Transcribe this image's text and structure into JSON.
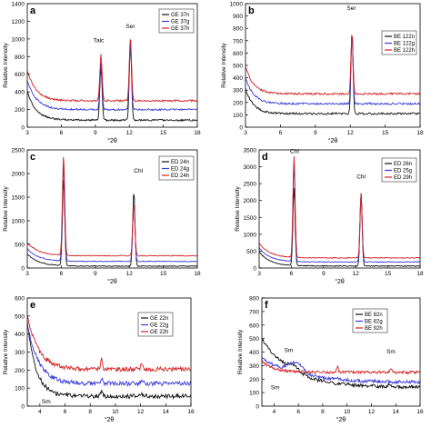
{
  "colors": {
    "n": "#111111",
    "g": "#3b3bd9",
    "h": "#d42020",
    "axis": "#000000",
    "legend_border": "#333333"
  },
  "chart_data": [
    {
      "type": "line",
      "panel": "a",
      "ylabel": "Relative Intensity",
      "xlabel": "°2θ",
      "xlim": [
        3,
        18
      ],
      "ylim": [
        0,
        1400
      ],
      "xticks": [
        3,
        6,
        9,
        12,
        15,
        18
      ],
      "yticks": [
        0,
        200,
        400,
        600,
        800,
        1000,
        1200,
        1400
      ],
      "series": [
        {
          "name": "GE 37n",
          "color_key": "n",
          "base": 80,
          "amp": 320,
          "tau": 0.8,
          "noise": 10,
          "peaks": [
            [
              9.5,
              600,
              0.1
            ],
            [
              12.1,
              860,
              0.1
            ]
          ]
        },
        {
          "name": "GE 37g",
          "color_key": "g",
          "base": 200,
          "amp": 330,
          "tau": 0.8,
          "noise": 10,
          "peaks": [
            [
              9.5,
              530,
              0.1
            ],
            [
              12.1,
              760,
              0.1
            ]
          ]
        },
        {
          "name": "GE 37h",
          "color_key": "h",
          "base": 300,
          "amp": 340,
          "tau": 0.8,
          "noise": 10,
          "peaks": [
            [
              9.5,
              520,
              0.1
            ],
            [
              12.1,
              710,
              0.1
            ]
          ]
        }
      ],
      "annotations": [
        {
          "text": "Talc",
          "x": 9.3,
          "y": 960
        },
        {
          "text": "Ser",
          "x": 12.1,
          "y": 1120
        }
      ]
    },
    {
      "type": "line",
      "panel": "b",
      "ylabel": "Relative Intensity",
      "xlabel": "°2θ",
      "xlim": [
        3,
        18
      ],
      "ylim": [
        0,
        1000
      ],
      "xticks": [
        3,
        6,
        9,
        12,
        15,
        18
      ],
      "yticks": [
        0,
        100,
        200,
        300,
        400,
        500,
        600,
        700,
        800,
        900,
        1000
      ],
      "series": [
        {
          "name": "BE 122n",
          "color_key": "n",
          "base": 110,
          "amp": 200,
          "tau": 0.7,
          "noise": 8,
          "peaks": [
            [
              12.15,
              660,
              0.09
            ]
          ]
        },
        {
          "name": "BE 122g",
          "color_key": "g",
          "base": 190,
          "amp": 210,
          "tau": 0.7,
          "noise": 8,
          "peaks": [
            [
              12.15,
              560,
              0.09
            ]
          ]
        },
        {
          "name": "BE 122h",
          "color_key": "h",
          "base": 270,
          "amp": 220,
          "tau": 0.7,
          "noise": 8,
          "peaks": [
            [
              12.15,
              490,
              0.09
            ]
          ]
        }
      ],
      "annotations": [
        {
          "text": "Ser",
          "x": 12.1,
          "y": 950
        }
      ]
    },
    {
      "type": "line",
      "panel": "c",
      "ylabel": "Relative Intensity",
      "xlabel": "°2θ",
      "xlim": [
        3,
        18
      ],
      "ylim": [
        0,
        2500
      ],
      "xticks": [
        3,
        6,
        9,
        12,
        15,
        18
      ],
      "yticks": [
        0,
        500,
        1000,
        1500,
        2000,
        2500
      ],
      "series": [
        {
          "name": "ED 24n",
          "color_key": "n",
          "base": 40,
          "amp": 260,
          "tau": 1.0,
          "noise": 8,
          "peaks": [
            [
              6.2,
              1820,
              0.1
            ],
            [
              12.4,
              1580,
              0.1
            ]
          ]
        },
        {
          "name": "ED 24g",
          "color_key": "g",
          "base": 140,
          "amp": 270,
          "tau": 1.0,
          "noise": 8,
          "peaks": [
            [
              6.2,
              2000,
              0.1
            ],
            [
              12.4,
              1200,
              0.1
            ]
          ]
        },
        {
          "name": "ED 24h",
          "color_key": "h",
          "base": 260,
          "amp": 280,
          "tau": 1.0,
          "noise": 8,
          "peaks": [
            [
              6.2,
              2100,
              0.1
            ],
            [
              12.4,
              1100,
              0.1
            ]
          ]
        }
      ],
      "annotations": [
        {
          "text": "Chl",
          "x": 12.8,
          "y": 2020
        }
      ]
    },
    {
      "type": "line",
      "panel": "d",
      "ylabel": "Relative Intensity",
      "xlabel": "°2θ",
      "xlim": [
        3,
        18
      ],
      "ylim": [
        0,
        3500
      ],
      "xticks": [
        3,
        6,
        9,
        12,
        15,
        18
      ],
      "yticks": [
        0,
        500,
        1000,
        1500,
        2000,
        2500,
        3000,
        3500
      ],
      "series": [
        {
          "name": "ED 26n",
          "color_key": "n",
          "base": 60,
          "amp": 420,
          "tau": 1.0,
          "noise": 12,
          "peaks": [
            [
              6.25,
              2300,
              0.1
            ],
            [
              12.5,
              2150,
              0.1
            ]
          ]
        },
        {
          "name": "ED 25g",
          "color_key": "g",
          "base": 180,
          "amp": 430,
          "tau": 1.0,
          "noise": 12,
          "peaks": [
            [
              6.25,
              2850,
              0.1
            ],
            [
              12.5,
              2000,
              0.1
            ]
          ]
        },
        {
          "name": "ED 29h",
          "color_key": "h",
          "base": 300,
          "amp": 440,
          "tau": 1.0,
          "noise": 12,
          "peaks": [
            [
              6.25,
              3000,
              0.1
            ],
            [
              12.5,
              1900,
              0.1
            ]
          ]
        }
      ],
      "annotations": [
        {
          "text": "Chl",
          "x": 6.3,
          "y": 3400
        },
        {
          "text": "Chl",
          "x": 12.5,
          "y": 2650
        }
      ]
    },
    {
      "type": "line",
      "panel": "e",
      "ylabel": "Relative Intensity",
      "xlabel": "°2θ",
      "xlim": [
        3,
        16
      ],
      "ylim": [
        0,
        600
      ],
      "xticks": [
        4,
        6,
        8,
        10,
        12,
        14,
        16
      ],
      "yticks": [
        0,
        100,
        200,
        300,
        400,
        500,
        600
      ],
      "series": [
        {
          "name": "GE 22n",
          "color_key": "n",
          "base": 55,
          "amp": 420,
          "tau": 0.7,
          "noise": 12,
          "peaks": [
            [
              8.9,
              20,
              0.1
            ],
            [
              12.1,
              12,
              0.1
            ]
          ]
        },
        {
          "name": "GE 22g",
          "color_key": "g",
          "base": 125,
          "amp": 330,
          "tau": 0.9,
          "noise": 12,
          "peaks": [
            [
              8.9,
              25,
              0.1
            ],
            [
              12.1,
              15,
              0.1
            ]
          ]
        },
        {
          "name": "GE 22h",
          "color_key": "h",
          "base": 205,
          "amp": 300,
          "tau": 0.9,
          "noise": 12,
          "peaks": [
            [
              8.9,
              60,
              0.08
            ],
            [
              12.1,
              25,
              0.1
            ]
          ]
        }
      ],
      "annotations": [
        {
          "text": "Sm",
          "x": 4.5,
          "y": 15
        }
      ]
    },
    {
      "type": "line",
      "panel": "f",
      "ylabel": "Relative Intensity",
      "xlabel": "°2θ",
      "xlim": [
        3,
        16
      ],
      "ylim": [
        0,
        800
      ],
      "xticks": [
        4,
        6,
        8,
        10,
        12,
        14,
        16
      ],
      "yticks": [
        0,
        100,
        200,
        300,
        400,
        500,
        600,
        700,
        800
      ],
      "series": [
        {
          "name": "BE 82n",
          "color_key": "n",
          "base": 140,
          "amp": 360,
          "tau": 2.4,
          "noise": 12,
          "peaks": [
            [
              5.6,
              40,
              0.5
            ],
            [
              13.5,
              25,
              0.1
            ]
          ]
        },
        {
          "name": "BE 82g",
          "color_key": "g",
          "base": 175,
          "amp": 180,
          "tau": 3.0,
          "noise": 12,
          "peaks": [
            [
              5.8,
              80,
              0.6
            ],
            [
              9.2,
              15,
              0.1
            ]
          ]
        },
        {
          "name": "BE 92h",
          "color_key": "h",
          "base": 250,
          "amp": 80,
          "tau": 1.0,
          "noise": 10,
          "peaks": [
            [
              9.2,
              40,
              0.08
            ],
            [
              13.6,
              25,
              0.1
            ]
          ]
        }
      ],
      "annotations": [
        {
          "text": "Sm",
          "x": 5.2,
          "y": 400
        },
        {
          "text": "Sm",
          "x": 4.1,
          "y": 125
        },
        {
          "text": "Sm",
          "x": 13.6,
          "y": 390
        }
      ]
    }
  ]
}
